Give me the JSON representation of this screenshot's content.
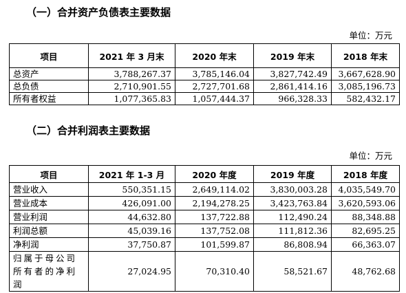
{
  "balance_section": {
    "heading": "（一）合并资产负债表主要数据",
    "unit": "单位：万元",
    "headers": [
      "项目",
      "2021 年 3 月末",
      "2020 年末",
      "2019 年末",
      "2018 年末"
    ],
    "rows": [
      {
        "label": "总资产",
        "values": [
          "3,788,267.37",
          "3,785,146.04",
          "3,827,742.49",
          "3,667,628.90"
        ]
      },
      {
        "label": "总负债",
        "values": [
          "2,710,901.55",
          "2,727,701.68",
          "2,861,414.16",
          "3,085,196.73"
        ]
      },
      {
        "label": "所有者权益",
        "values": [
          "1,077,365.83",
          "1,057,444.37",
          "966,328.33",
          "582,432.17"
        ]
      }
    ]
  },
  "income_section": {
    "heading": "（二）合并利润表主要数据",
    "unit": "单位：万元",
    "headers": [
      "项目",
      "2021 年 1-3 月",
      "2020 年度",
      "2019 年度",
      "2018 年度"
    ],
    "rows": [
      {
        "label": "营业收入",
        "values": [
          "550,351.15",
          "2,649,114.02",
          "3,830,003.28",
          "4,035,549.70"
        ]
      },
      {
        "label": "营业成本",
        "values": [
          "426,091.00",
          "2,194,278.25",
          "3,423,763.84",
          "3,620,593.06"
        ]
      },
      {
        "label": "营业利润",
        "values": [
          "44,632.80",
          "137,722.88",
          "112,490.24",
          "88,348.88"
        ]
      },
      {
        "label": "利润总额",
        "values": [
          "45,039.16",
          "137,752.08",
          "111,812.36",
          "82,695.25"
        ]
      },
      {
        "label": "净利润",
        "values": [
          "37,750.87",
          "101,599.87",
          "86,808.94",
          "66,363.07"
        ]
      },
      {
        "label": "归属于母公司所有者的净利润",
        "values": [
          "27,024.95",
          "70,310.40",
          "58,521.67",
          "48,762.68"
        ]
      }
    ]
  }
}
